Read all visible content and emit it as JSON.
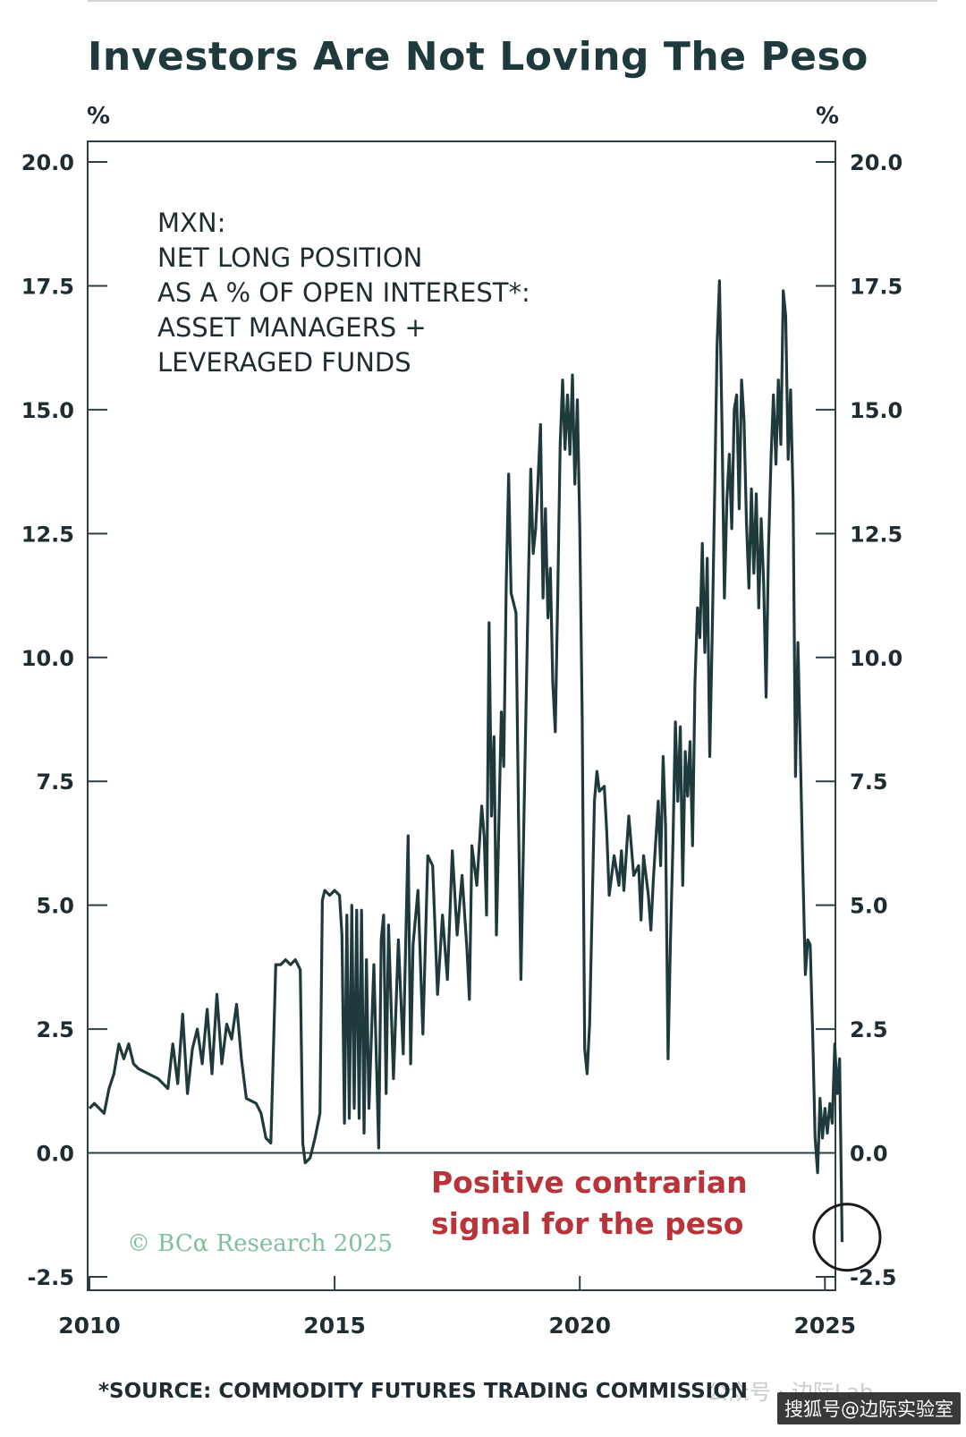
{
  "title": "Investors Are Not Loving The Peso",
  "source_note": "*SOURCE: COMMODITY FUTURES TRADING COMMISSION",
  "credit": "© BCα Research 2025",
  "watermark": {
    "faint": "公众号 · 边际Lab",
    "box": "搜狐号@边际实验室"
  },
  "colors": {
    "line": "#1f3a3d",
    "axis": "#2e3f44",
    "callout": "#b8333a",
    "credit": "#7fbf9a"
  },
  "chart_data": {
    "type": "line",
    "ylabel_left": "%",
    "ylabel_right": "%",
    "ylim": [
      -2.5,
      20.0
    ],
    "xlim": [
      2010.0,
      2026.6
    ],
    "yticks": [
      "20.0",
      "17.5",
      "15.0",
      "12.5",
      "10.0",
      "7.5",
      "5.0",
      "2.5",
      "0.0",
      "-2.5"
    ],
    "ytick_values": [
      20.0,
      17.5,
      15.0,
      12.5,
      10.0,
      7.5,
      5.0,
      2.5,
      0.0,
      -2.5
    ],
    "xticks": [
      "2010",
      "2015",
      "2020",
      "2025"
    ],
    "xtick_values": [
      2010,
      2015,
      2020,
      2025
    ],
    "annotation_lines": [
      "MXN:",
      "NET LONG POSITION",
      "AS A % OF OPEN INTEREST*:",
      "ASSET MANAGERS +",
      "LEVERAGED FUNDS"
    ],
    "callout_lines": [
      "Positive contrarian",
      "signal for the peso"
    ],
    "callout_marker": {
      "x": 2025.45,
      "y": -1.7
    },
    "zero_line": 0.0,
    "series": [
      {
        "name": "",
        "points": [
          [
            2010.0,
            0.9
          ],
          [
            2010.1,
            1.0
          ],
          [
            2010.2,
            0.9
          ],
          [
            2010.3,
            0.8
          ],
          [
            2010.4,
            1.3
          ],
          [
            2010.5,
            1.6
          ],
          [
            2010.6,
            2.2
          ],
          [
            2010.7,
            1.9
          ],
          [
            2010.8,
            2.2
          ],
          [
            2010.9,
            1.8
          ],
          [
            2011.0,
            1.7
          ],
          [
            2011.2,
            1.6
          ],
          [
            2011.4,
            1.5
          ],
          [
            2011.6,
            1.3
          ],
          [
            2011.7,
            2.2
          ],
          [
            2011.8,
            1.4
          ],
          [
            2011.9,
            2.8
          ],
          [
            2012.0,
            1.2
          ],
          [
            2012.1,
            2.1
          ],
          [
            2012.2,
            2.5
          ],
          [
            2012.3,
            1.8
          ],
          [
            2012.4,
            2.9
          ],
          [
            2012.5,
            1.6
          ],
          [
            2012.6,
            3.2
          ],
          [
            2012.7,
            1.8
          ],
          [
            2012.8,
            2.6
          ],
          [
            2012.9,
            2.3
          ],
          [
            2013.0,
            3.0
          ],
          [
            2013.1,
            1.9
          ],
          [
            2013.2,
            1.1
          ],
          [
            2013.4,
            1.0
          ],
          [
            2013.5,
            0.8
          ],
          [
            2013.6,
            0.3
          ],
          [
            2013.7,
            0.2
          ],
          [
            2013.8,
            3.8
          ],
          [
            2013.9,
            3.8
          ],
          [
            2014.0,
            3.9
          ],
          [
            2014.1,
            3.8
          ],
          [
            2014.2,
            3.9
          ],
          [
            2014.3,
            3.7
          ],
          [
            2014.35,
            0.2
          ],
          [
            2014.4,
            -0.2
          ],
          [
            2014.5,
            -0.1
          ],
          [
            2014.6,
            0.3
          ],
          [
            2014.7,
            0.8
          ],
          [
            2014.75,
            5.1
          ],
          [
            2014.8,
            5.3
          ],
          [
            2014.9,
            5.2
          ],
          [
            2015.0,
            5.3
          ],
          [
            2015.1,
            5.2
          ],
          [
            2015.15,
            4.4
          ],
          [
            2015.2,
            0.6
          ],
          [
            2015.25,
            4.8
          ],
          [
            2015.3,
            0.7
          ],
          [
            2015.35,
            5.0
          ],
          [
            2015.4,
            0.9
          ],
          [
            2015.45,
            4.9
          ],
          [
            2015.5,
            0.7
          ],
          [
            2015.55,
            4.9
          ],
          [
            2015.6,
            0.4
          ],
          [
            2015.65,
            3.9
          ],
          [
            2015.7,
            0.9
          ],
          [
            2015.8,
            3.8
          ],
          [
            2015.9,
            0.1
          ],
          [
            2015.95,
            4.3
          ],
          [
            2016.0,
            4.8
          ],
          [
            2016.05,
            1.2
          ],
          [
            2016.1,
            4.6
          ],
          [
            2016.2,
            1.5
          ],
          [
            2016.3,
            4.3
          ],
          [
            2016.4,
            2.0
          ],
          [
            2016.5,
            6.4
          ],
          [
            2016.55,
            1.8
          ],
          [
            2016.6,
            4.2
          ],
          [
            2016.7,
            5.3
          ],
          [
            2016.8,
            2.4
          ],
          [
            2016.9,
            6.0
          ],
          [
            2017.0,
            5.8
          ],
          [
            2017.1,
            3.2
          ],
          [
            2017.2,
            4.8
          ],
          [
            2017.3,
            3.5
          ],
          [
            2017.4,
            6.1
          ],
          [
            2017.5,
            4.4
          ],
          [
            2017.6,
            5.6
          ],
          [
            2017.7,
            4.1
          ],
          [
            2017.75,
            3.1
          ],
          [
            2017.8,
            6.2
          ],
          [
            2017.9,
            5.4
          ],
          [
            2018.0,
            7.0
          ],
          [
            2018.05,
            6.4
          ],
          [
            2018.1,
            4.8
          ],
          [
            2018.15,
            10.7
          ],
          [
            2018.2,
            6.8
          ],
          [
            2018.25,
            8.4
          ],
          [
            2018.3,
            4.4
          ],
          [
            2018.4,
            8.9
          ],
          [
            2018.45,
            7.8
          ],
          [
            2018.5,
            11.5
          ],
          [
            2018.55,
            13.7
          ],
          [
            2018.6,
            11.3
          ],
          [
            2018.7,
            10.9
          ],
          [
            2018.75,
            6.8
          ],
          [
            2018.8,
            3.5
          ],
          [
            2018.85,
            6.2
          ],
          [
            2018.9,
            8.8
          ],
          [
            2018.95,
            11.4
          ],
          [
            2019.0,
            13.8
          ],
          [
            2019.05,
            12.1
          ],
          [
            2019.1,
            12.6
          ],
          [
            2019.15,
            13.6
          ],
          [
            2019.2,
            14.7
          ],
          [
            2019.25,
            11.2
          ],
          [
            2019.3,
            13.0
          ],
          [
            2019.35,
            10.8
          ],
          [
            2019.4,
            11.8
          ],
          [
            2019.45,
            9.5
          ],
          [
            2019.5,
            8.5
          ],
          [
            2019.55,
            11.2
          ],
          [
            2019.6,
            14.3
          ],
          [
            2019.65,
            15.6
          ],
          [
            2019.7,
            14.2
          ],
          [
            2019.75,
            15.3
          ],
          [
            2019.8,
            14.1
          ],
          [
            2019.85,
            15.7
          ],
          [
            2019.9,
            13.5
          ],
          [
            2019.95,
            15.2
          ],
          [
            2020.0,
            12.6
          ],
          [
            2020.05,
            8.8
          ],
          [
            2020.1,
            2.1
          ],
          [
            2020.15,
            1.6
          ],
          [
            2020.2,
            2.6
          ],
          [
            2020.3,
            7.1
          ],
          [
            2020.35,
            7.7
          ],
          [
            2020.4,
            7.3
          ],
          [
            2020.5,
            7.4
          ],
          [
            2020.55,
            6.5
          ],
          [
            2020.6,
            5.2
          ],
          [
            2020.7,
            6.0
          ],
          [
            2020.8,
            5.4
          ],
          [
            2020.85,
            6.1
          ],
          [
            2020.9,
            5.3
          ],
          [
            2021.0,
            6.8
          ],
          [
            2021.05,
            6.2
          ],
          [
            2021.1,
            5.6
          ],
          [
            2021.2,
            5.8
          ],
          [
            2021.25,
            4.7
          ],
          [
            2021.3,
            6.0
          ],
          [
            2021.4,
            5.2
          ],
          [
            2021.45,
            4.5
          ],
          [
            2021.5,
            5.5
          ],
          [
            2021.6,
            7.1
          ],
          [
            2021.65,
            5.8
          ],
          [
            2021.7,
            8.0
          ],
          [
            2021.75,
            6.6
          ],
          [
            2021.8,
            1.9
          ],
          [
            2021.85,
            4.3
          ],
          [
            2021.9,
            6.2
          ],
          [
            2021.95,
            8.7
          ],
          [
            2022.0,
            7.1
          ],
          [
            2022.05,
            8.6
          ],
          [
            2022.1,
            5.4
          ],
          [
            2022.15,
            8.1
          ],
          [
            2022.2,
            7.2
          ],
          [
            2022.25,
            8.3
          ],
          [
            2022.3,
            6.2
          ],
          [
            2022.35,
            9.5
          ],
          [
            2022.4,
            11.0
          ],
          [
            2022.45,
            10.4
          ],
          [
            2022.5,
            12.3
          ],
          [
            2022.55,
            10.1
          ],
          [
            2022.6,
            12.0
          ],
          [
            2022.65,
            8.0
          ],
          [
            2022.7,
            10.4
          ],
          [
            2022.75,
            13.2
          ],
          [
            2022.8,
            16.3
          ],
          [
            2022.85,
            17.6
          ],
          [
            2022.9,
            14.7
          ],
          [
            2022.95,
            11.2
          ],
          [
            2023.0,
            13.2
          ],
          [
            2023.05,
            14.1
          ],
          [
            2023.1,
            12.6
          ],
          [
            2023.15,
            15.0
          ],
          [
            2023.2,
            15.3
          ],
          [
            2023.25,
            13.0
          ],
          [
            2023.3,
            15.6
          ],
          [
            2023.35,
            14.8
          ],
          [
            2023.4,
            12.7
          ],
          [
            2023.45,
            11.4
          ],
          [
            2023.5,
            13.4
          ],
          [
            2023.55,
            11.7
          ],
          [
            2023.6,
            13.3
          ],
          [
            2023.65,
            11.0
          ],
          [
            2023.7,
            12.8
          ],
          [
            2023.75,
            11.5
          ],
          [
            2023.8,
            9.2
          ],
          [
            2023.85,
            12.2
          ],
          [
            2023.9,
            14.0
          ],
          [
            2023.95,
            15.3
          ],
          [
            2024.0,
            13.9
          ],
          [
            2024.05,
            15.6
          ],
          [
            2024.1,
            14.3
          ],
          [
            2024.15,
            17.4
          ],
          [
            2024.2,
            16.9
          ],
          [
            2024.25,
            14.0
          ],
          [
            2024.3,
            15.4
          ],
          [
            2024.35,
            13.2
          ],
          [
            2024.4,
            7.6
          ],
          [
            2024.45,
            10.3
          ],
          [
            2024.5,
            8.0
          ],
          [
            2024.55,
            5.7
          ],
          [
            2024.6,
            3.6
          ],
          [
            2024.65,
            4.3
          ],
          [
            2024.7,
            4.2
          ],
          [
            2024.75,
            2.4
          ],
          [
            2024.8,
            0.3
          ],
          [
            2024.85,
            -0.4
          ],
          [
            2024.9,
            1.1
          ],
          [
            2024.95,
            0.3
          ],
          [
            2025.0,
            0.9
          ],
          [
            2025.05,
            0.4
          ],
          [
            2025.1,
            1.0
          ],
          [
            2025.15,
            0.6
          ],
          [
            2025.2,
            2.2
          ],
          [
            2025.25,
            1.2
          ],
          [
            2025.3,
            1.9
          ],
          [
            2025.35,
            -1.8
          ]
        ]
      }
    ]
  }
}
